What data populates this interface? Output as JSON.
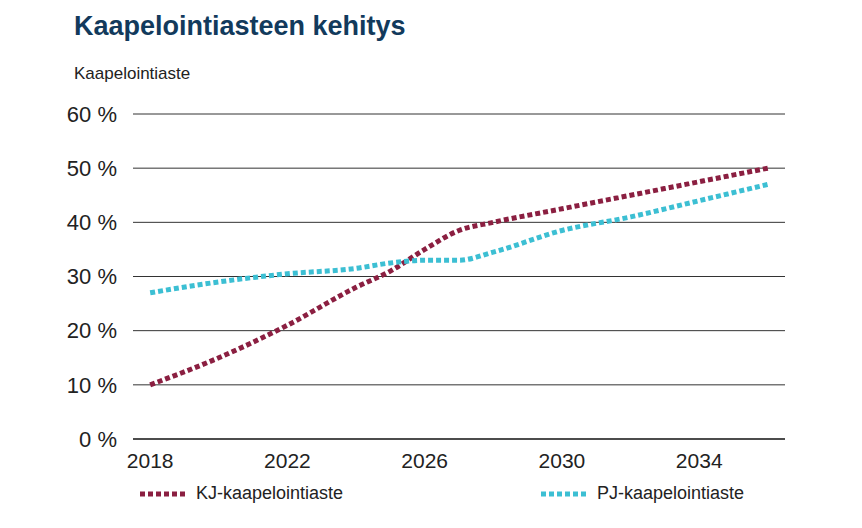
{
  "chart_data": {
    "type": "line",
    "title": "Kaapelointiasteen kehitys",
    "y_label": "Kaapelointiaste",
    "x": [
      2018,
      2020,
      2022,
      2024,
      2025,
      2026,
      2027,
      2028,
      2030,
      2032,
      2034,
      2036
    ],
    "series": [
      {
        "name": "KJ-kaapelointiaste",
        "color": "#8b1f41",
        "line_style": "dotted",
        "values": [
          10,
          15,
          21,
          28,
          31,
          35,
          38.5,
          40,
          42.5,
          45,
          47.5,
          50
        ]
      },
      {
        "name": "PJ-kaapelointiaste",
        "color": "#3cbfd3",
        "line_style": "dotted",
        "values": [
          27,
          29,
          30.5,
          31.5,
          32.5,
          33,
          33,
          34.5,
          38.5,
          41,
          44,
          47
        ]
      }
    ],
    "xlim": [
      2017.5,
      2036.5
    ],
    "xticks": [
      2018,
      2022,
      2026,
      2030,
      2034
    ],
    "ylim": [
      0,
      60
    ],
    "yticks": [
      {
        "value": 0,
        "label": "0 %"
      },
      {
        "value": 10,
        "label": "10 %"
      },
      {
        "value": 20,
        "label": "20 %"
      },
      {
        "value": 30,
        "label": "30 %"
      },
      {
        "value": 40,
        "label": "40 %"
      },
      {
        "value": 50,
        "label": "50 %"
      },
      {
        "value": 60,
        "label": "60 %"
      }
    ],
    "grid": true,
    "legend": "bottom"
  }
}
